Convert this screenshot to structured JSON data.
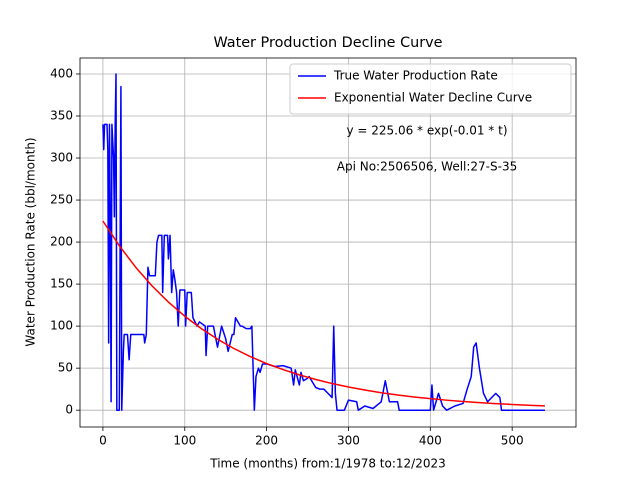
{
  "chart_data": {
    "type": "line",
    "title": "Water Production Decline Curve",
    "xlabel": "Time (months) from:1/1978 to:12/2023",
    "ylabel": "Water Production Rate (bbl/month)",
    "annotations": [
      "y = 225.06 * exp(-0.01 * t)",
      "Api No:2506506, Well:27-S-35"
    ],
    "xlim": [
      -28,
      578
    ],
    "ylim": [
      -20,
      419
    ],
    "xticks": [
      0,
      100,
      200,
      300,
      400,
      500
    ],
    "yticks": [
      0,
      50,
      100,
      150,
      200,
      250,
      300,
      350,
      400
    ],
    "grid": true,
    "legend": "upper right",
    "series": [
      {
        "name": "True Water Production Rate",
        "color": "#0000ff",
        "x": [
          0,
          1,
          2,
          5,
          6,
          7,
          8,
          9,
          10,
          11,
          13,
          14,
          15,
          16,
          17,
          20,
          22,
          23,
          25,
          26,
          30,
          32,
          34,
          50,
          51,
          53,
          55,
          57,
          64,
          66,
          68,
          72,
          73,
          75,
          79,
          80,
          82,
          84,
          86,
          88,
          90,
          92,
          94,
          100,
          101,
          103,
          108,
          110,
          115,
          118,
          125,
          126,
          128,
          135,
          140,
          145,
          150,
          153,
          158,
          160,
          162,
          168,
          170,
          175,
          180,
          182,
          185,
          187,
          190,
          192,
          195,
          200,
          210,
          220,
          230,
          233,
          235,
          240,
          242,
          245,
          250,
          252,
          255,
          260,
          265,
          270,
          275,
          280,
          282,
          284,
          286,
          295,
          300,
          310,
          312,
          320,
          330,
          340,
          345,
          350,
          360,
          362,
          400,
          402,
          404,
          410,
          415,
          420,
          430,
          440,
          445,
          450,
          453,
          456,
          460,
          465,
          470,
          480,
          485,
          487,
          540
        ],
        "values": [
          340,
          310,
          340,
          340,
          310,
          80,
          340,
          230,
          10,
          340,
          300,
          230,
          340,
          400,
          0,
          0,
          385,
          0,
          70,
          90,
          90,
          60,
          90,
          90,
          80,
          90,
          170,
          160,
          160,
          200,
          208,
          208,
          140,
          208,
          208,
          180,
          208,
          140,
          167,
          155,
          140,
          100,
          143,
          143,
          100,
          140,
          140,
          110,
          100,
          105,
          100,
          65,
          100,
          100,
          75,
          100,
          85,
          70,
          90,
          90,
          110,
          100,
          100,
          97,
          97,
          100,
          0,
          40,
          50,
          45,
          55,
          55,
          52,
          53,
          50,
          30,
          48,
          30,
          45,
          35,
          38,
          40,
          35,
          27,
          25,
          25,
          20,
          15,
          100,
          20,
          0,
          0,
          12,
          10,
          0,
          5,
          2,
          10,
          35,
          10,
          10,
          0,
          0,
          30,
          0,
          20,
          5,
          0,
          5,
          8,
          25,
          40,
          75,
          80,
          50,
          20,
          10,
          20,
          15,
          0,
          0
        ]
      },
      {
        "name": "Exponential Water Decline Curve",
        "color": "#ff0000",
        "x": [
          0,
          20,
          40,
          60,
          80,
          100,
          120,
          140,
          160,
          180,
          200,
          220,
          240,
          260,
          280,
          300,
          320,
          340,
          360,
          380,
          400,
          420,
          440,
          460,
          480,
          500,
          520,
          540
        ],
        "values": [
          225.06,
          195.7,
          170.1,
          147.9,
          128.6,
          111.8,
          97.2,
          84.5,
          73.4,
          63.8,
          55.5,
          48.3,
          42.0,
          36.5,
          31.7,
          27.6,
          24.0,
          20.8,
          18.1,
          15.7,
          13.7,
          11.9,
          10.3,
          9.0,
          7.8,
          6.8,
          5.9,
          5.1
        ]
      }
    ]
  }
}
